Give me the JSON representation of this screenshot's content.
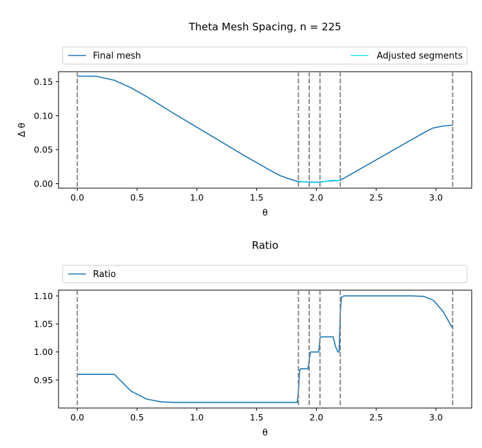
{
  "chart_data": [
    {
      "type": "line",
      "title": "Theta Mesh Spacing, n = 225",
      "xlabel": "θ",
      "ylabel": "Δ θ",
      "xlim": [
        -0.157,
        3.299
      ],
      "ylim": [
        -0.0066,
        0.1647
      ],
      "xticks": [
        "0.0",
        "0.5",
        "1.0",
        "1.5",
        "2.0",
        "2.5",
        "3.0"
      ],
      "yticks": [
        "0.00",
        "0.05",
        "0.10",
        "0.15"
      ],
      "legend_placement": "top",
      "series": [
        {
          "name": "Final mesh",
          "color": "#1f77b4",
          "x": [
            0.0,
            0.16,
            0.31,
            0.45,
            0.58,
            0.7,
            0.8,
            1.0,
            1.2,
            1.4,
            1.6,
            1.7,
            1.8,
            1.85,
            1.88,
            1.93,
            1.97,
            2.03,
            2.1,
            2.2,
            2.3,
            2.4,
            2.5,
            2.6,
            2.7,
            2.8,
            2.9,
            2.97,
            3.05,
            3.14
          ],
          "y": [
            0.158,
            0.158,
            0.152,
            0.141,
            0.128,
            0.115,
            0.104,
            0.083,
            0.062,
            0.041,
            0.021,
            0.0115,
            0.0055,
            0.003,
            0.0028,
            0.0023,
            0.0022,
            0.0024,
            0.0038,
            0.005,
            0.015,
            0.025,
            0.035,
            0.045,
            0.055,
            0.065,
            0.075,
            0.0815,
            0.0845,
            0.086
          ]
        },
        {
          "name": "Adjusted segments",
          "color": "#00e5ff",
          "x": [
            1.85,
            1.88,
            1.93,
            1.97,
            2.0,
            2.03,
            2.07,
            2.12,
            2.2
          ],
          "y": [
            0.004,
            0.003,
            0.002,
            0.0017,
            0.0016,
            0.0019,
            0.003,
            0.0048,
            0.005
          ]
        }
      ],
      "vlines": [
        0.0,
        1.85,
        1.94,
        2.03,
        2.2,
        3.14
      ],
      "vline_color": "#808080"
    },
    {
      "type": "line",
      "title": "Ratio",
      "xlabel": "θ",
      "ylabel": "",
      "xlim": [
        -0.157,
        3.299
      ],
      "ylim": [
        0.9,
        1.1102
      ],
      "xticks": [
        "0.0",
        "0.5",
        "1.0",
        "1.5",
        "2.0",
        "2.5",
        "3.0"
      ],
      "yticks": [
        "0.95",
        "1.00",
        "1.05",
        "1.10"
      ],
      "legend_placement": "top",
      "series": [
        {
          "name": "Ratio",
          "color": "#1f77b4",
          "x": [
            0.0,
            0.16,
            0.31,
            0.45,
            0.58,
            0.7,
            0.8,
            1.0,
            1.5,
            1.84,
            1.85,
            1.86,
            1.87,
            1.93,
            1.94,
            1.95,
            2.02,
            2.03,
            2.04,
            2.08,
            2.14,
            2.16,
            2.18,
            2.19,
            2.2,
            2.21,
            2.23,
            2.8,
            2.9,
            2.98,
            3.06,
            3.14
          ],
          "y": [
            0.96,
            0.96,
            0.96,
            0.93,
            0.916,
            0.911,
            0.91,
            0.91,
            0.91,
            0.91,
            0.93,
            0.968,
            0.97,
            0.97,
            0.985,
            1.0,
            1.0,
            1.025,
            1.027,
            1.027,
            1.027,
            1.01,
            1.0,
            1.0,
            1.07,
            1.098,
            1.1,
            1.1,
            1.099,
            1.092,
            1.072,
            1.042
          ]
        }
      ],
      "vlines": [
        0.0,
        1.85,
        1.94,
        2.03,
        2.2,
        3.14
      ],
      "vline_color": "#808080"
    }
  ]
}
